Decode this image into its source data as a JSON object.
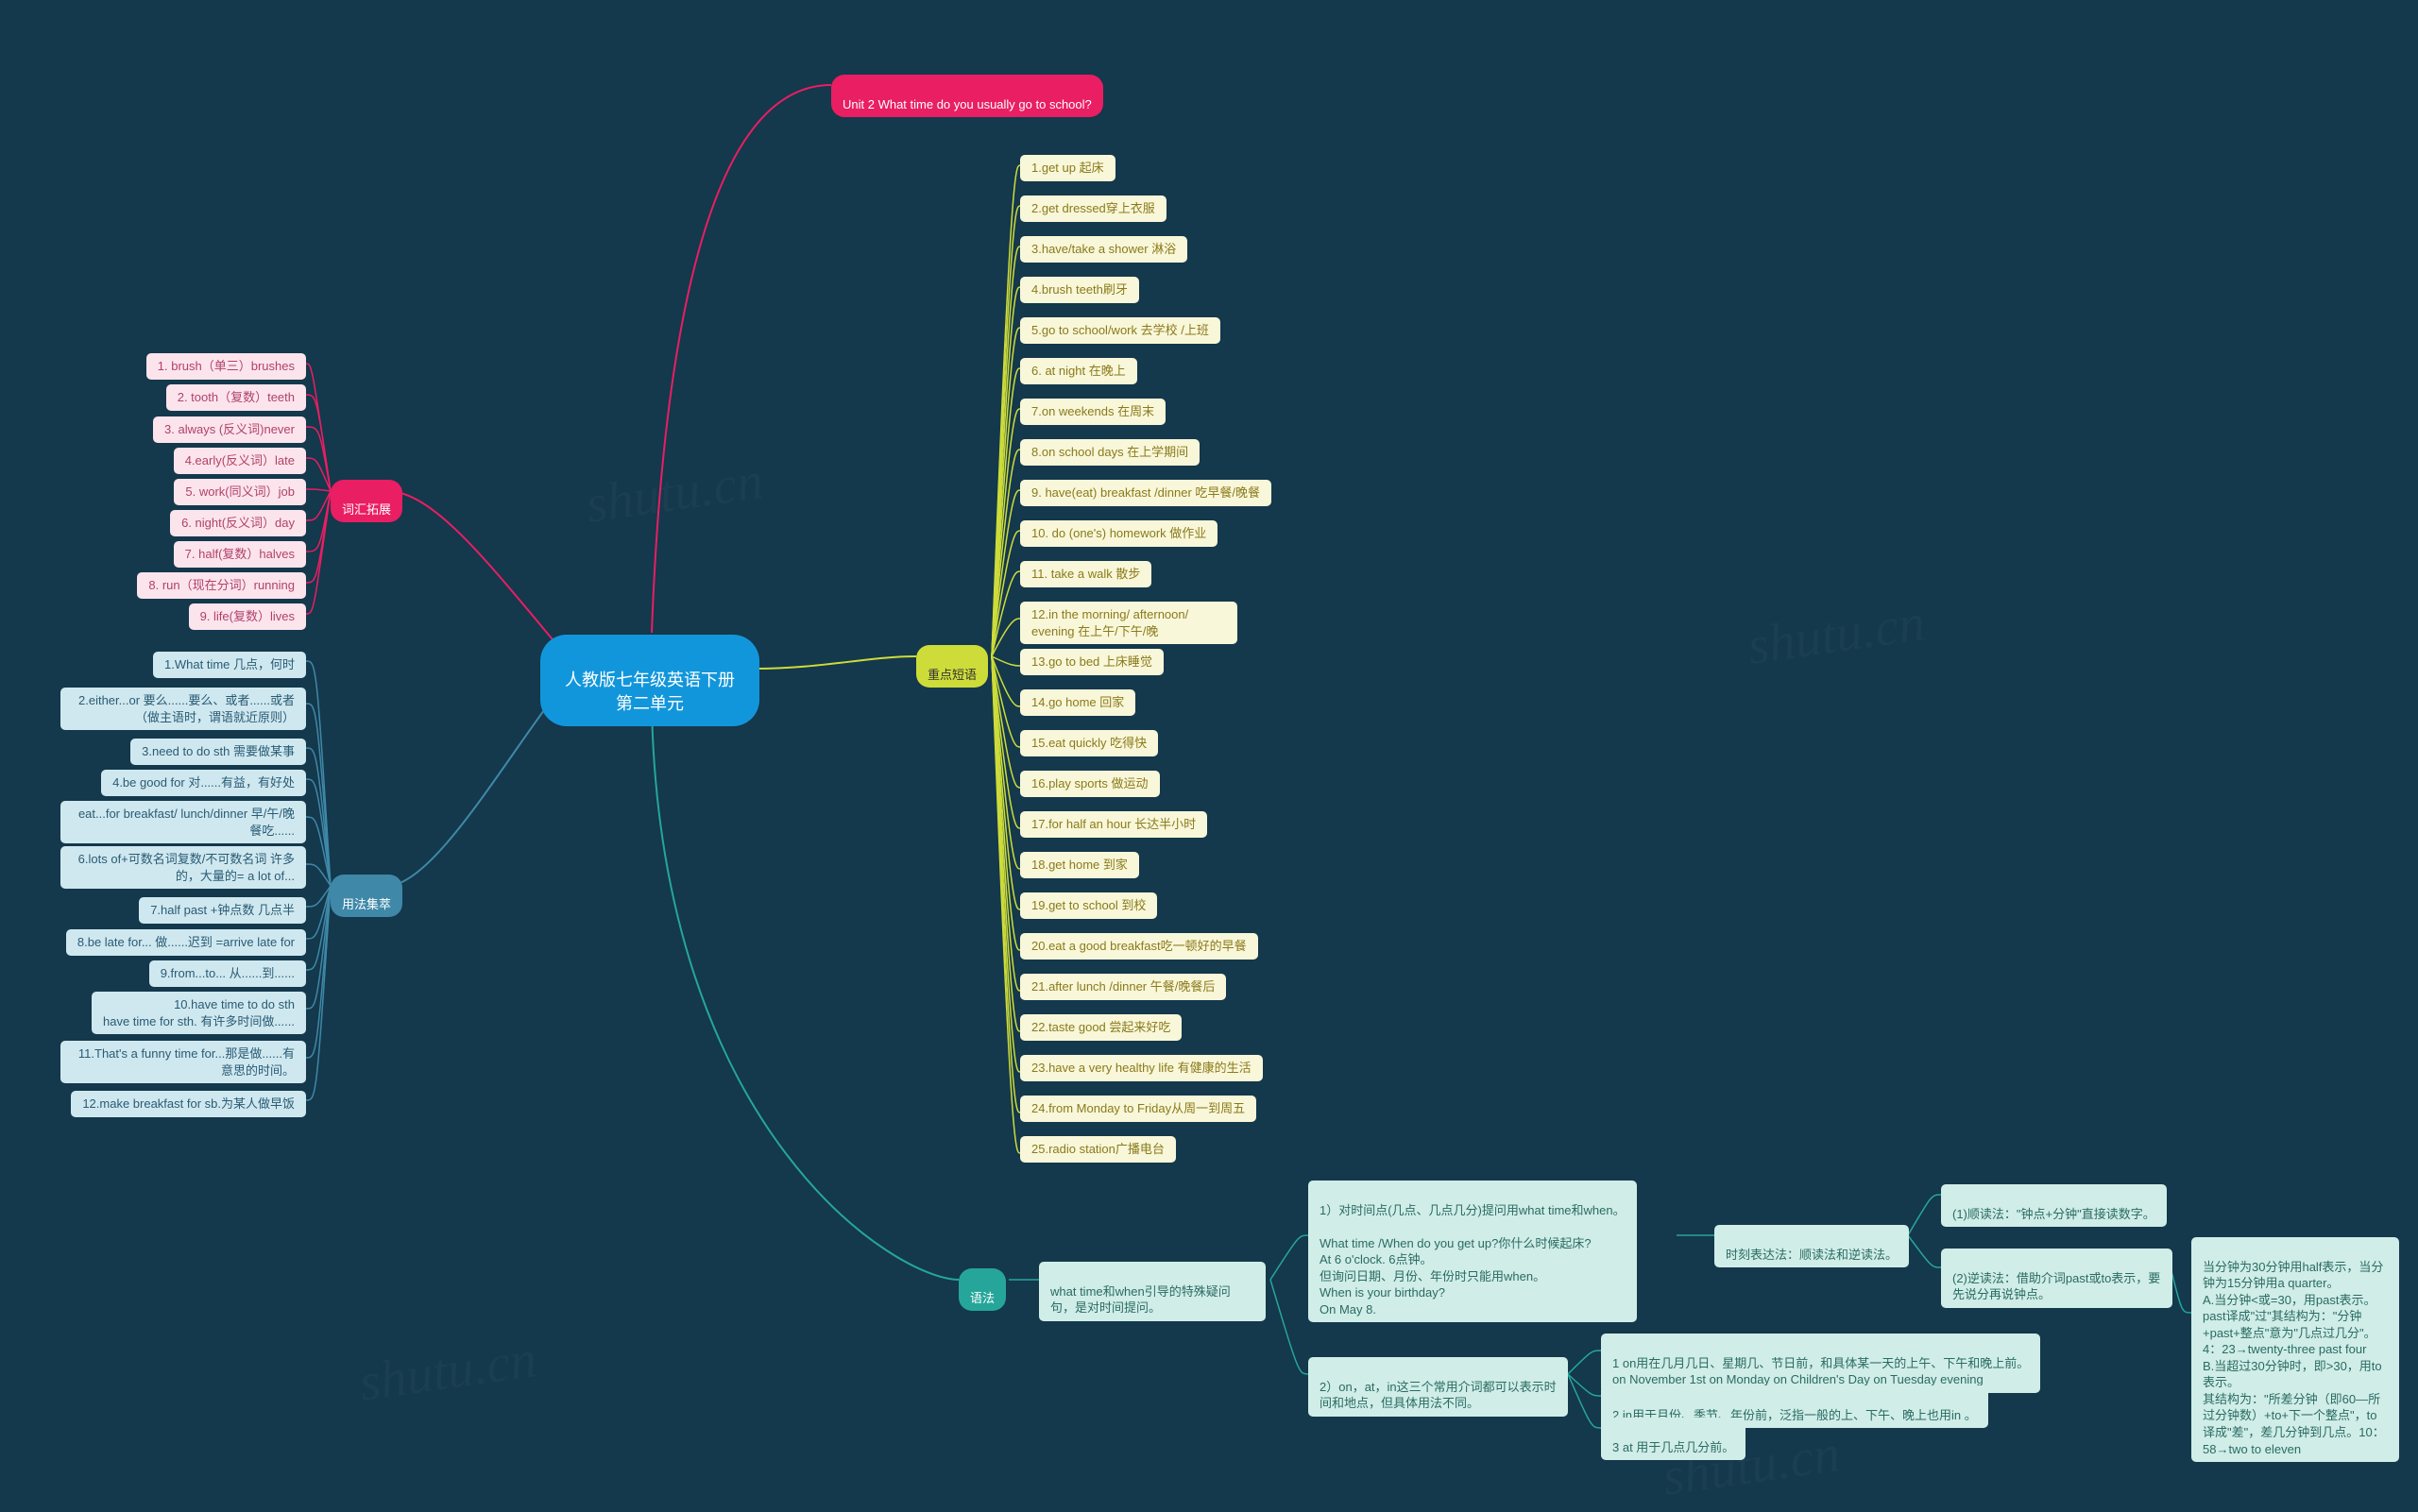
{
  "colors": {
    "background": "#14384c",
    "root": "#1296db",
    "branch_pink": "#e91e63",
    "branch_blue": "#3f88a8",
    "branch_yellow": "#cddc39",
    "branch_teal": "#26a69a",
    "leaf_pink_bg": "#fce4ec",
    "leaf_pink_fg": "#b0426a",
    "leaf_blue_bg": "#cfe8f0",
    "leaf_blue_fg": "#2a5b73",
    "leaf_yellow_bg": "#f9f7d9",
    "leaf_yellow_fg": "#8a7a1c",
    "leaf_teal_bg": "#d0ede8",
    "leaf_teal_fg": "#2a6b62",
    "line_pink": "#e91e63",
    "line_blue": "#3f88a8",
    "line_yellow": "#cddc39",
    "line_teal": "#26a69a"
  },
  "root": {
    "label": "人教版七年级英语下册第二单元"
  },
  "branches": {
    "title": {
      "label": "Unit 2 What time do you usually go to school?"
    },
    "vocab": {
      "label": "词汇拓展"
    },
    "usage": {
      "label": "用法集萃"
    },
    "phrases": {
      "label": "重点短语"
    },
    "grammar": {
      "label": "语法"
    }
  },
  "vocab_items": [
    "1. brush（单三）brushes",
    "2. tooth（复数）teeth",
    "3. always (反义词)never",
    "4.early(反义词）late",
    "5. work(同义词）job",
    "6. night(反义词）day",
    "7. half(复数）halves",
    "8. run（现在分词）running",
    "9. life(复数）lives"
  ],
  "usage_items": [
    "1.What time 几点，何时",
    "2.either...or 要么......要么、或者......或者  （做主语时，谓语就近原则）",
    "3.need to do sth 需要做某事",
    "4.be good for 对......有益，有好处",
    "eat...for breakfast/ lunch/dinner 早/午/晚餐吃......",
    "6.lots of+可数名词复数/不可数名词  许多的，大量的= a lot of...",
    "7.half past +钟点数   几点半",
    "8.be late for... 做......迟到  =arrive late for",
    "9.from...to... 从......到......",
    "10.have time to do sth\nhave time for sth. 有许多时间做......",
    "11.That's a funny time for...那是做......有意思的时间。",
    "12.make breakfast for sb.为某人做早饭"
  ],
  "phrase_items": [
    "1.get up 起床",
    "2.get dressed穿上衣服",
    "3.have/take a shower 淋浴",
    "4.brush teeth刷牙",
    "5.go to school/work 去学校 /上班",
    "6. at night 在晚上",
    "7.on weekends 在周末",
    "8.on school days 在上学期间",
    "9. have(eat) breakfast /dinner 吃早餐/晚餐",
    "10. do (one's) homework 做作业",
    "11. take a walk 散步",
    "12.in the morning/ afternoon/ evening 在上午/下午/晚",
    "13.go to bed 上床睡觉",
    "14.go home 回家",
    "15.eat quickly 吃得快",
    "16.play sports 做运动",
    "17.for half an hour 长达半小时",
    "18.get home 到家",
    "19.get to school 到校",
    "20.eat a good breakfast吃一顿好的早餐",
    "21.after lunch /dinner 午餐/晚餐后",
    "22.taste good 尝起来好吃",
    "23.have a very healthy life 有健康的生活",
    "24.from Monday to Friday从周一到周五",
    "25.radio station广播电台"
  ],
  "grammar": {
    "root": "what time和when引导的特殊疑问句，是对时间提问。",
    "sub1": "1）对时间点(几点、几点几分)提问用what time和when。\n\n     What time /When do you get up?你什么时候起床?\n     At 6 o'clock. 6点钟。\n但询问日期、月份、年份时只能用when。\nWhen is your birthday?\nOn May 8.",
    "sub1_time": "时刻表达法：顺读法和逆读法。",
    "sub1_time_1": "(1)顺读法：\"钟点+分钟\"直接读数字。",
    "sub1_time_2": "当分钟为30分钟用half表示，当分钟为15分钟用a quarter。\n    A.当分钟<或=30，用past表示。past译成\"过\"其结构为：\"分钟+past+整点\"意为\"几点过几分\"。 4：23→twenty-three past four\nB.当超过30分钟时，即>30，用to表示。\n其结构为：\"所差分钟（即60—所过分钟数）+to+下一个整点\"，to译成\"差\"，差几分钟到几点。10：58→two to eleven",
    "sub1_time_2_pre": "(2)逆读法：借助介词past或to表示，要先说分再说钟点。",
    "sub2": "2）on，at，in这三个常用介词都可以表示时间和地点，但具体用法不同。",
    "sub2_1": "1 on用在几月几日、星期几、节日前，和具体某一天的上午、下午和晚上前。\non November 1st  on Monday  on Children's Day  on Tuesday evening",
    "sub2_2": "2 in用于月份、季节、年份前，泛指一般的上、下午、晚上也用in 。",
    "sub2_3": "3 at 用于几点几分前。"
  },
  "watermark": "shutu.cn"
}
